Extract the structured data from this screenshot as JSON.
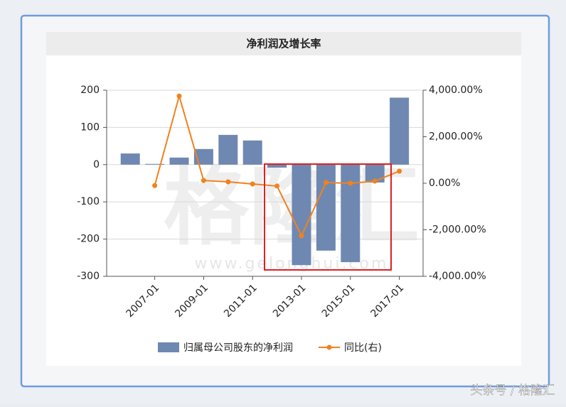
{
  "chart_data": {
    "type": "bar-line",
    "title": "净利润及增长率",
    "categories": [
      null,
      "2007-01",
      null,
      "2009-01",
      null,
      "2011-01",
      null,
      "2013-01",
      null,
      "2015-01",
      null,
      "2017-01"
    ],
    "series": [
      {
        "name": "归属母公司股东的净利润",
        "type": "bar",
        "color": "#6f88b2",
        "values": [
          30,
          2,
          19,
          42,
          80,
          65,
          -8,
          -270,
          -231,
          -262,
          -48,
          180
        ]
      },
      {
        "name": "同比(右)",
        "type": "line",
        "axis": "y2",
        "color": "#f0821e",
        "values": [
          null,
          -100,
          3750,
          120,
          60,
          -30,
          -120,
          -2260,
          30,
          0,
          90,
          520
        ]
      }
    ],
    "ylim": [
      -300,
      200
    ],
    "yticks": [
      -300,
      -200,
      -100,
      0,
      100,
      200
    ],
    "y2lim": [
      -4000,
      4000
    ],
    "y2ticks": [
      {
        "value": -4000,
        "label": "-4,000.00%"
      },
      {
        "value": -2000,
        "label": "-2,000.00%"
      },
      {
        "value": 0,
        "label": "0.00%"
      },
      {
        "value": 2000,
        "label": "2,000.00%"
      },
      {
        "value": 4000,
        "label": "4,000.00%"
      }
    ],
    "grid": true,
    "watermark": "格隆汇",
    "watermark_url": "www.gelonghui.com"
  },
  "footer": "头条号 / 格隆汇"
}
